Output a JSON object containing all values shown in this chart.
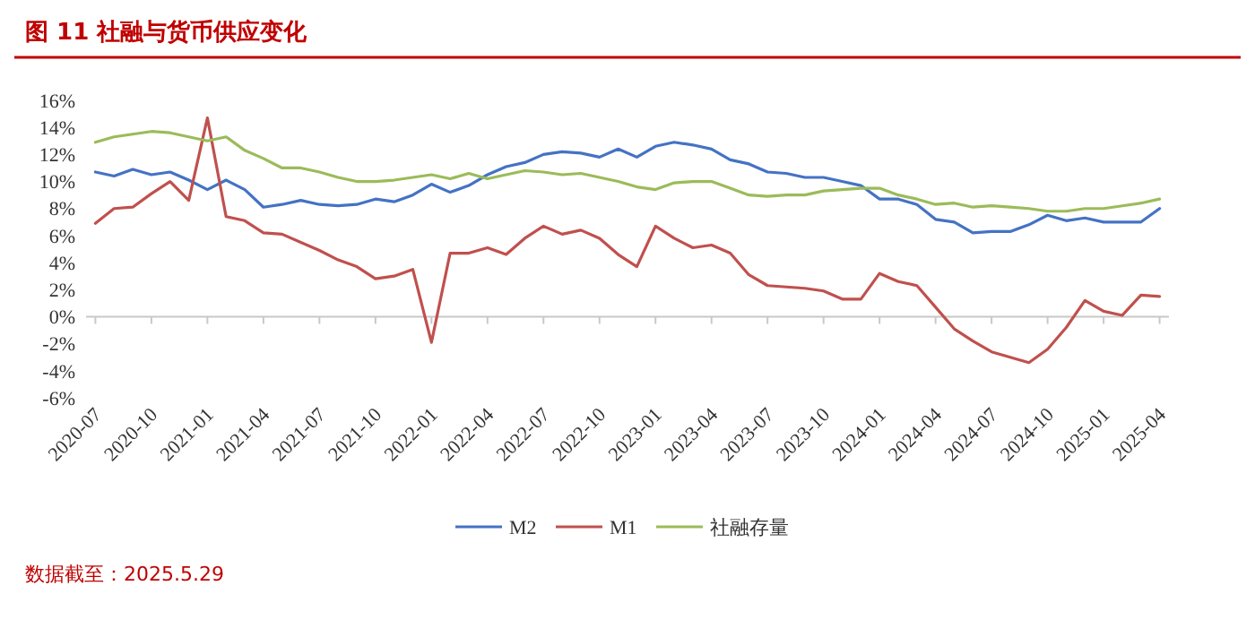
{
  "chart_data": {
    "type": "line",
    "title": "图 11  社融与货币供应变化",
    "categories": [
      "2020-07",
      null,
      null,
      "2020-10",
      null,
      null,
      "2021-01",
      null,
      null,
      "2021-04",
      null,
      null,
      "2021-07",
      null,
      null,
      "2021-10",
      null,
      null,
      "2022-01",
      null,
      null,
      "2022-04",
      null,
      null,
      "2022-07",
      null,
      null,
      "2022-10",
      null,
      null,
      "2023-01",
      null,
      null,
      "2023-04",
      null,
      null,
      "2023-07",
      null,
      null,
      "2023-10",
      null,
      null,
      "2024-01",
      null,
      null,
      "2024-04",
      null,
      null,
      "2024-07",
      null,
      null,
      "2024-10",
      null,
      null,
      "2025-01",
      null,
      null,
      "2025-04"
    ],
    "series": [
      {
        "name": "M2",
        "color": "#4472c4",
        "values": [
          10.7,
          10.4,
          10.9,
          10.5,
          10.7,
          10.1,
          9.4,
          10.1,
          9.4,
          8.1,
          8.3,
          8.6,
          8.3,
          8.2,
          8.3,
          8.7,
          8.5,
          9.0,
          9.8,
          9.2,
          9.7,
          10.5,
          11.1,
          11.4,
          12.0,
          12.2,
          12.1,
          11.8,
          12.4,
          11.8,
          12.6,
          12.9,
          12.7,
          12.4,
          11.6,
          11.3,
          10.7,
          10.6,
          10.3,
          10.3,
          10.0,
          9.7,
          8.7,
          8.7,
          8.3,
          7.2,
          7.0,
          6.2,
          6.3,
          6.3,
          6.8,
          7.5,
          7.1,
          7.3,
          7.0,
          7.0,
          7.0,
          8.0
        ]
      },
      {
        "name": "M1",
        "color": "#c0504d",
        "values": [
          6.9,
          8.0,
          8.1,
          9.1,
          10.0,
          8.6,
          14.7,
          7.4,
          7.1,
          6.2,
          6.1,
          5.5,
          4.9,
          4.2,
          3.7,
          2.8,
          3.0,
          3.5,
          -1.9,
          4.7,
          4.7,
          5.1,
          4.6,
          5.8,
          6.7,
          6.1,
          6.4,
          5.8,
          4.6,
          3.7,
          6.7,
          5.8,
          5.1,
          5.3,
          4.7,
          3.1,
          2.3,
          2.2,
          2.1,
          1.9,
          1.3,
          1.3,
          3.2,
          2.6,
          2.3,
          0.7,
          -0.9,
          -1.8,
          -2.6,
          -3.0,
          -3.4,
          -2.4,
          -0.8,
          1.2,
          0.4,
          0.1,
          1.6,
          1.5
        ]
      },
      {
        "name": "社融存量",
        "color": "#9bbb59",
        "values": [
          12.9,
          13.3,
          13.5,
          13.7,
          13.6,
          13.3,
          13.0,
          13.3,
          12.3,
          11.7,
          11.0,
          11.0,
          10.7,
          10.3,
          10.0,
          10.0,
          10.1,
          10.3,
          10.5,
          10.2,
          10.6,
          10.2,
          10.5,
          10.8,
          10.7,
          10.5,
          10.6,
          10.3,
          10.0,
          9.6,
          9.4,
          9.9,
          10.0,
          10.0,
          9.5,
          9.0,
          8.9,
          9.0,
          9.0,
          9.3,
          9.4,
          9.5,
          9.5,
          9.0,
          8.7,
          8.3,
          8.4,
          8.1,
          8.2,
          8.1,
          8.0,
          7.8,
          7.8,
          8.0,
          8.0,
          8.2,
          8.4,
          8.7
        ]
      }
    ],
    "ylim": [
      -6,
      16
    ],
    "yticks": [
      {
        "value": -6,
        "label": "-6%"
      },
      {
        "value": -4,
        "label": "-4%"
      },
      {
        "value": -2,
        "label": "-2%"
      },
      {
        "value": 0,
        "label": "0%"
      },
      {
        "value": 2,
        "label": "2%"
      },
      {
        "value": 4,
        "label": "4%"
      },
      {
        "value": 6,
        "label": "6%"
      },
      {
        "value": 8,
        "label": "8%"
      },
      {
        "value": 10,
        "label": "10%"
      },
      {
        "value": 12,
        "label": "12%"
      },
      {
        "value": 14,
        "label": "14%"
      },
      {
        "value": 16,
        "label": "16%"
      }
    ],
    "legend": "bottom",
    "line_style": "solid",
    "marker": "none",
    "annotations": [
      "数据截至：2025.5.29"
    ]
  }
}
